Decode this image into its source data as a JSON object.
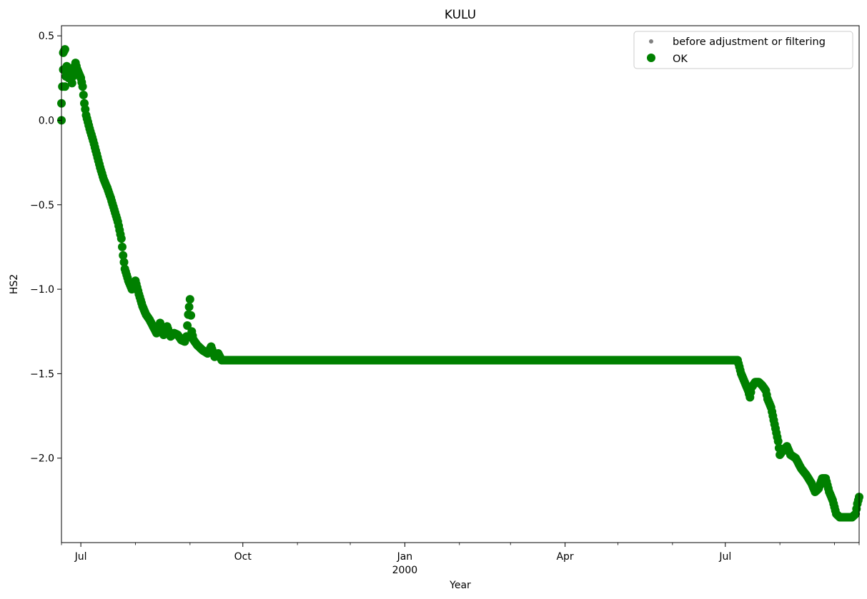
{
  "chart_data": {
    "type": "scatter",
    "title": "KULU",
    "xlabel": "Year",
    "ylabel": "HS2",
    "x_axis_type": "date",
    "xlim": [
      "1999-06-20",
      "2000-09-15"
    ],
    "ylim": [
      -2.5,
      0.56
    ],
    "grid": false,
    "legend_position": "top-right",
    "x_ticks": [
      {
        "date": "1999-07-01",
        "label": "Jul",
        "sublabel": ""
      },
      {
        "date": "1999-10-01",
        "label": "Oct",
        "sublabel": ""
      },
      {
        "date": "2000-01-01",
        "label": "Jan",
        "sublabel": "2000"
      },
      {
        "date": "2000-04-01",
        "label": "Apr",
        "sublabel": ""
      },
      {
        "date": "2000-07-01",
        "label": "Jul",
        "sublabel": ""
      }
    ],
    "x_minor_ticks": [
      "1999-06-20",
      "1999-08-01",
      "1999-09-01",
      "1999-11-01",
      "1999-12-01",
      "2000-02-01",
      "2000-03-01",
      "2000-05-01",
      "2000-06-01",
      "2000-08-01",
      "2000-09-01",
      "2000-09-15"
    ],
    "y_ticks": [
      {
        "value": 0.5,
        "label": "0.5"
      },
      {
        "value": 0.0,
        "label": "0.0"
      },
      {
        "value": -0.5,
        "label": "−0.5"
      },
      {
        "value": -1.0,
        "label": "−1.0"
      },
      {
        "value": -1.5,
        "label": "−1.5"
      },
      {
        "value": -2.0,
        "label": "−2.0"
      }
    ],
    "legend": [
      {
        "label": "before adjustment or filtering",
        "color": "#808080",
        "marker": "small-dot"
      },
      {
        "label": "OK",
        "color": "#008000",
        "marker": "large-dot"
      }
    ],
    "series": [
      {
        "name": "OK",
        "color": "#008000",
        "points": [
          [
            "1999-06-20",
            0.0
          ],
          [
            "1999-06-20",
            0.1
          ],
          [
            "1999-06-21",
            0.3
          ],
          [
            "1999-06-21",
            0.4
          ],
          [
            "1999-06-22",
            0.42
          ],
          [
            "1999-06-22",
            0.2
          ],
          [
            "1999-06-23",
            0.32
          ],
          [
            "1999-06-24",
            0.25
          ],
          [
            "1999-06-25",
            0.28
          ],
          [
            "1999-06-26",
            0.22
          ],
          [
            "1999-06-27",
            0.3
          ],
          [
            "1999-06-28",
            0.34
          ],
          [
            "1999-06-29",
            0.3
          ],
          [
            "1999-07-01",
            0.25
          ],
          [
            "1999-07-02",
            0.2
          ],
          [
            "1999-07-03",
            0.1
          ],
          [
            "1999-07-04",
            0.03
          ],
          [
            "1999-07-06",
            -0.05
          ],
          [
            "1999-07-08",
            -0.12
          ],
          [
            "1999-07-10",
            -0.2
          ],
          [
            "1999-07-12",
            -0.28
          ],
          [
            "1999-07-14",
            -0.35
          ],
          [
            "1999-07-16",
            -0.4
          ],
          [
            "1999-07-18",
            -0.46
          ],
          [
            "1999-07-20",
            -0.53
          ],
          [
            "1999-07-22",
            -0.6
          ],
          [
            "1999-07-24",
            -0.7
          ],
          [
            "1999-07-25",
            -0.8
          ],
          [
            "1999-07-26",
            -0.88
          ],
          [
            "1999-07-28",
            -0.95
          ],
          [
            "1999-07-30",
            -1.0
          ],
          [
            "1999-08-01",
            -0.95
          ],
          [
            "1999-08-03",
            -1.03
          ],
          [
            "1999-08-05",
            -1.1
          ],
          [
            "1999-08-07",
            -1.15
          ],
          [
            "1999-08-09",
            -1.18
          ],
          [
            "1999-08-11",
            -1.22
          ],
          [
            "1999-08-13",
            -1.26
          ],
          [
            "1999-08-15",
            -1.2
          ],
          [
            "1999-08-17",
            -1.27
          ],
          [
            "1999-08-19",
            -1.22
          ],
          [
            "1999-08-21",
            -1.28
          ],
          [
            "1999-08-23",
            -1.26
          ],
          [
            "1999-08-25",
            -1.27
          ],
          [
            "1999-08-27",
            -1.3
          ],
          [
            "1999-08-29",
            -1.31
          ],
          [
            "1999-08-30",
            -1.28
          ],
          [
            "1999-08-31",
            -1.15
          ],
          [
            "1999-09-01",
            -1.06
          ],
          [
            "1999-09-02",
            -1.25
          ],
          [
            "1999-09-03",
            -1.3
          ],
          [
            "1999-09-05",
            -1.33
          ],
          [
            "1999-09-08",
            -1.36
          ],
          [
            "1999-09-11",
            -1.38
          ],
          [
            "1999-09-13",
            -1.34
          ],
          [
            "1999-09-15",
            -1.4
          ],
          [
            "1999-09-17",
            -1.38
          ],
          [
            "1999-09-19",
            -1.42
          ],
          [
            "1999-09-21",
            -1.42
          ],
          [
            "1999-10-01",
            -1.42
          ],
          [
            "1999-11-01",
            -1.42
          ],
          [
            "1999-12-01",
            -1.42
          ],
          [
            "2000-01-01",
            -1.42
          ],
          [
            "2000-02-01",
            -1.42
          ],
          [
            "2000-03-01",
            -1.42
          ],
          [
            "2000-04-01",
            -1.42
          ],
          [
            "2000-05-01",
            -1.42
          ],
          [
            "2000-06-01",
            -1.42
          ],
          [
            "2000-07-01",
            -1.42
          ],
          [
            "2000-07-08",
            -1.42
          ],
          [
            "2000-07-10",
            -1.5
          ],
          [
            "2000-07-12",
            -1.55
          ],
          [
            "2000-07-14",
            -1.6
          ],
          [
            "2000-07-15",
            -1.64
          ],
          [
            "2000-07-16",
            -1.58
          ],
          [
            "2000-07-18",
            -1.55
          ],
          [
            "2000-07-20",
            -1.55
          ],
          [
            "2000-07-22",
            -1.57
          ],
          [
            "2000-07-24",
            -1.6
          ],
          [
            "2000-07-25",
            -1.65
          ],
          [
            "2000-07-27",
            -1.7
          ],
          [
            "2000-07-29",
            -1.8
          ],
          [
            "2000-07-31",
            -1.9
          ],
          [
            "2000-08-01",
            -1.98
          ],
          [
            "2000-08-03",
            -1.95
          ],
          [
            "2000-08-05",
            -1.93
          ],
          [
            "2000-08-07",
            -1.98
          ],
          [
            "2000-08-10",
            -2.0
          ],
          [
            "2000-08-13",
            -2.06
          ],
          [
            "2000-08-16",
            -2.1
          ],
          [
            "2000-08-19",
            -2.15
          ],
          [
            "2000-08-21",
            -2.2
          ],
          [
            "2000-08-23",
            -2.18
          ],
          [
            "2000-08-25",
            -2.12
          ],
          [
            "2000-08-27",
            -2.12
          ],
          [
            "2000-08-29",
            -2.2
          ],
          [
            "2000-08-31",
            -2.25
          ],
          [
            "2000-09-02",
            -2.33
          ],
          [
            "2000-09-04",
            -2.35
          ],
          [
            "2000-09-07",
            -2.35
          ],
          [
            "2000-09-11",
            -2.35
          ],
          [
            "2000-09-13",
            -2.33
          ],
          [
            "2000-09-14",
            -2.27
          ],
          [
            "2000-09-15",
            -2.23
          ]
        ]
      }
    ]
  }
}
